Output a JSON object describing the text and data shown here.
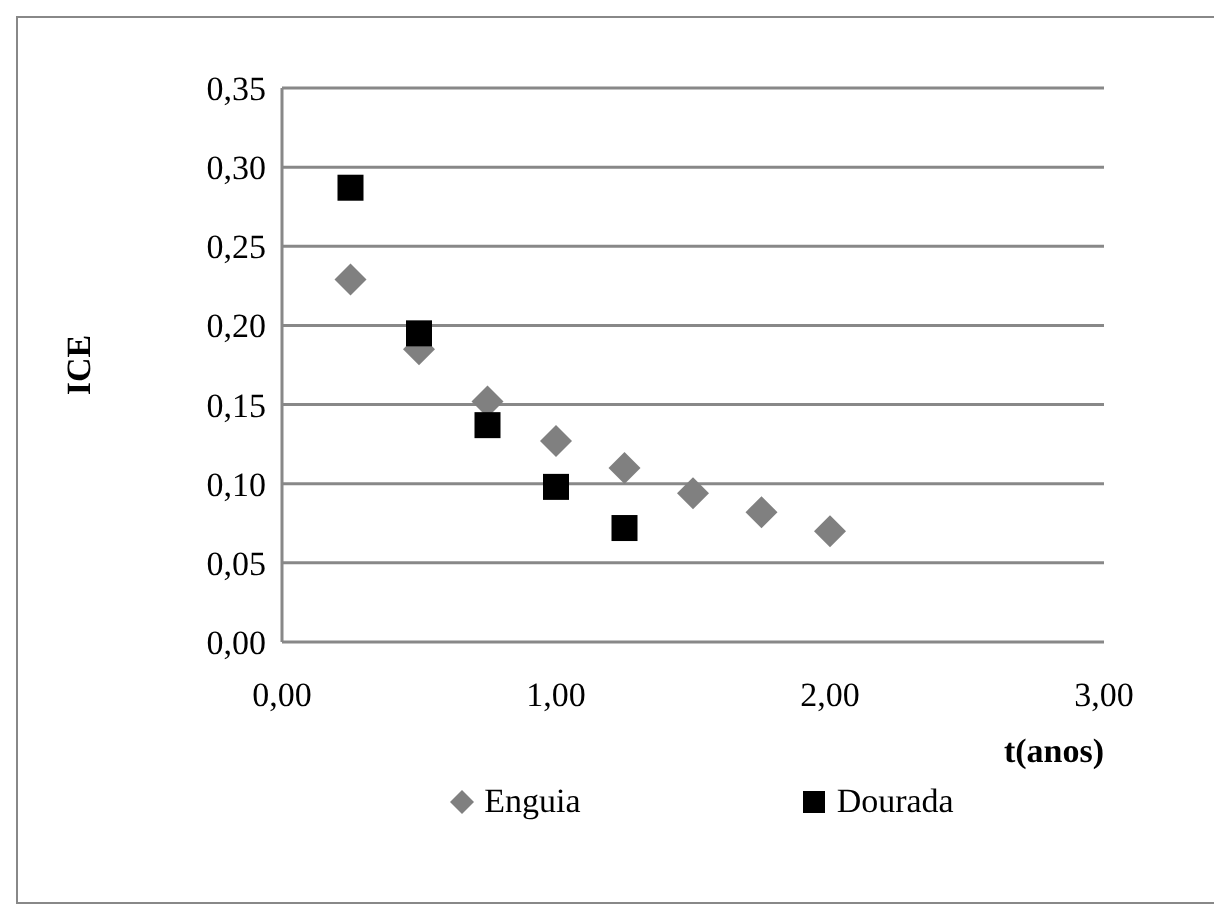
{
  "chart_data": {
    "type": "scatter",
    "xlabel": "t(anos)",
    "ylabel": "ICE",
    "xlim": [
      0,
      3
    ],
    "xticks": [
      {
        "value": 0,
        "label": "0,00"
      },
      {
        "value": 1,
        "label": "1,00"
      },
      {
        "value": 2,
        "label": "2,00"
      },
      {
        "value": 3,
        "label": "3,00"
      }
    ],
    "ylim": [
      0,
      0.35
    ],
    "yticks": [
      {
        "value": 0,
        "label": "0,00"
      },
      {
        "value": 0.05,
        "label": "0,05"
      },
      {
        "value": 0.1,
        "label": "0,10"
      },
      {
        "value": 0.15,
        "label": "0,15"
      },
      {
        "value": 0.2,
        "label": "0,20"
      },
      {
        "value": 0.25,
        "label": "0,25"
      },
      {
        "value": 0.3,
        "label": "0,30"
      },
      {
        "value": 0.35,
        "label": "0,35"
      }
    ],
    "grid": "y",
    "legend": "bottom",
    "series": [
      {
        "name": "Enguia",
        "color": "#808080",
        "marker": "diamond",
        "x": [
          0.25,
          0.5,
          0.75,
          1.0,
          1.25,
          1.5,
          1.75,
          2.0
        ],
        "values": [
          0.229,
          0.185,
          0.152,
          0.127,
          0.11,
          0.094,
          0.082,
          0.07
        ]
      },
      {
        "name": "Dourada",
        "color": "#000000",
        "marker": "square",
        "x": [
          0.25,
          0.5,
          0.75,
          1.0,
          1.25
        ],
        "values": [
          0.287,
          0.195,
          0.137,
          0.098,
          0.072
        ]
      }
    ]
  }
}
